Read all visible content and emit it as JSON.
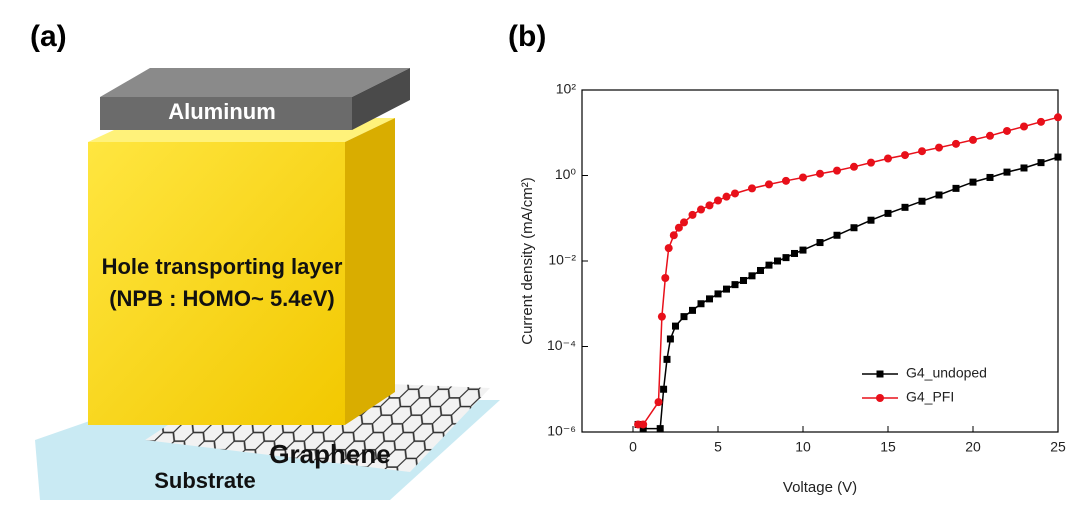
{
  "panel_labels": [
    "(a)",
    "(b)"
  ],
  "diagram": {
    "layers": [
      "Aluminum",
      "Hole transporting layer",
      "(NPB : HOMO~ 5.4eV)",
      "Graphene",
      "Substrate"
    ]
  },
  "chart_data": {
    "type": "line",
    "x_label": "Voltage (V)",
    "y_label": "Current density (mA/cm²)",
    "xlim": [
      -3,
      25
    ],
    "xticks": [
      0,
      5,
      10,
      15,
      20,
      25
    ],
    "ylim": [
      1e-06,
      100
    ],
    "y_scale": "log",
    "yticks": [
      {
        "value": 1e-06,
        "label": "10⁻⁶"
      },
      {
        "value": 0.0001,
        "label": "10⁻⁴"
      },
      {
        "value": 0.01,
        "label": "10⁻²"
      },
      {
        "value": 1,
        "label": "10⁰"
      },
      {
        "value": 100,
        "label": "10²"
      }
    ],
    "legend": "lower right",
    "series": [
      {
        "name": "G4_undoped",
        "color": "#000000",
        "marker": "square",
        "x": [
          0.3,
          0.6,
          1.6,
          1.8,
          2.0,
          2.2,
          2.5,
          3,
          3.5,
          4,
          4.5,
          5,
          5.5,
          6,
          6.5,
          7,
          7.5,
          8,
          8.5,
          9,
          9.5,
          10,
          11,
          12,
          13,
          14,
          15,
          16,
          17,
          18,
          19,
          20,
          21,
          22,
          23,
          24,
          25
        ],
        "values": [
          1.5e-06,
          1.2e-06,
          1.2e-06,
          1e-05,
          5e-05,
          0.00015,
          0.0003,
          0.0005,
          0.0007,
          0.001,
          0.0013,
          0.0017,
          0.0022,
          0.0028,
          0.0035,
          0.0045,
          0.006,
          0.008,
          0.01,
          0.012,
          0.015,
          0.018,
          0.027,
          0.04,
          0.06,
          0.09,
          0.13,
          0.18,
          0.25,
          0.35,
          0.5,
          0.7,
          0.9,
          1.2,
          1.5,
          2,
          2.7
        ]
      },
      {
        "name": "G4_PFI",
        "color": "#e8101a",
        "marker": "circle",
        "x": [
          0.3,
          0.6,
          1.5,
          1.7,
          1.9,
          2.1,
          2.4,
          2.7,
          3,
          3.5,
          4,
          4.5,
          5,
          5.5,
          6,
          7,
          8,
          9,
          10,
          11,
          12,
          13,
          14,
          15,
          16,
          17,
          18,
          19,
          20,
          21,
          22,
          23,
          24,
          25
        ],
        "values": [
          1.5e-06,
          1.5e-06,
          5e-06,
          0.0005,
          0.004,
          0.02,
          0.04,
          0.06,
          0.08,
          0.12,
          0.16,
          0.2,
          0.26,
          0.32,
          0.38,
          0.5,
          0.62,
          0.75,
          0.9,
          1.1,
          1.3,
          1.6,
          2,
          2.5,
          3,
          3.7,
          4.5,
          5.5,
          6.8,
          8.5,
          11,
          14,
          18,
          23
        ]
      }
    ]
  }
}
